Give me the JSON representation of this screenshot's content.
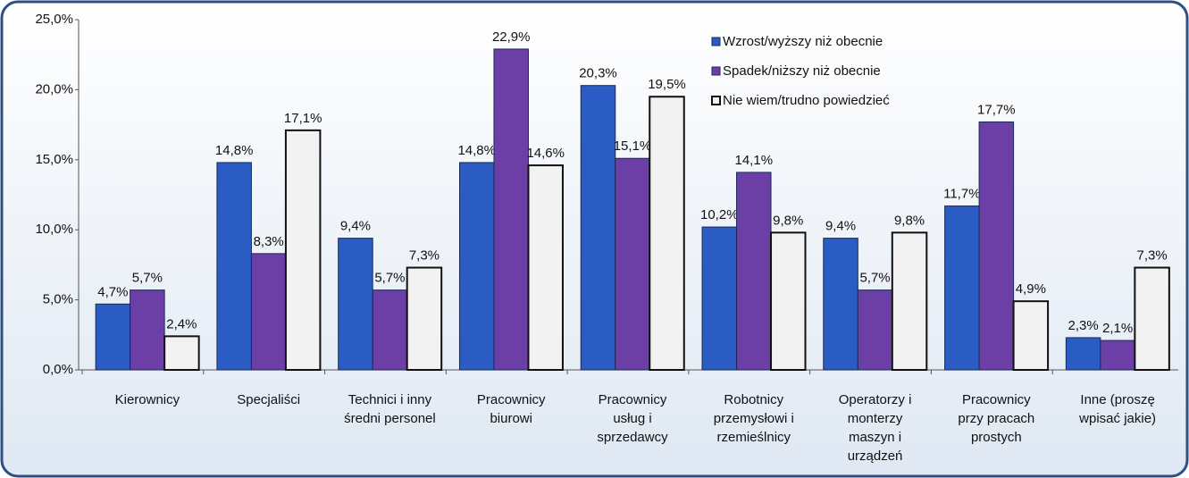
{
  "chart_data": {
    "type": "bar",
    "categories": [
      "Kierownicy",
      "Specjaliści",
      "Technici i inny\nśredni personel",
      "Pracownicy\nbiurowi",
      "Pracownicy\nusług i\nsprzedawcy",
      "Robotnicy\nprzemysłowi i\nrzemieślnicy",
      "Operatorzy i\nmonterzy\nmaszyn i\nurządzeń",
      "Pracownicy\nprzy pracach\nprostych",
      "Inne (proszę\nwpisać jakie)"
    ],
    "series": [
      {
        "name": "Wzrost/wyższy niż obecnie",
        "color": "#2a5cc4",
        "values": [
          4.7,
          14.8,
          9.4,
          14.8,
          20.3,
          10.2,
          9.4,
          11.7,
          2.3
        ],
        "value_labels": [
          "4,7%",
          "14,8%",
          "9,4%",
          "14,8%",
          "20,3%",
          "10,2%",
          "9,4%",
          "11,7%",
          "2,3%"
        ]
      },
      {
        "name": "Spadek/niższy niż obecnie",
        "color": "#6b3fa6",
        "values": [
          5.7,
          8.3,
          5.7,
          22.9,
          15.1,
          14.1,
          5.7,
          17.7,
          2.1
        ],
        "value_labels": [
          "5,7%",
          "8,3%",
          "5,7%",
          "22,9%",
          "15,1%",
          "14,1%",
          "5,7%",
          "17,7%",
          "2,1%"
        ]
      },
      {
        "name": "Nie wiem/trudno powiedzieć",
        "color": "#f2f2f2",
        "values": [
          2.4,
          17.1,
          7.3,
          14.6,
          19.5,
          9.8,
          9.8,
          4.9,
          7.3
        ],
        "value_labels": [
          "2,4%",
          "17,1%",
          "7,3%",
          "14,6%",
          "19,5%",
          "9,8%",
          "9,8%",
          "4,9%",
          "7,3%"
        ]
      }
    ],
    "ylim": [
      0,
      25
    ],
    "yticks": [
      {
        "value": 0,
        "label": "0,0%"
      },
      {
        "value": 5,
        "label": "5,0%"
      },
      {
        "value": 10,
        "label": "10,0%"
      },
      {
        "value": 15,
        "label": "15,0%"
      },
      {
        "value": 20,
        "label": "20,0%"
      },
      {
        "value": 25,
        "label": "25,0%"
      }
    ]
  }
}
